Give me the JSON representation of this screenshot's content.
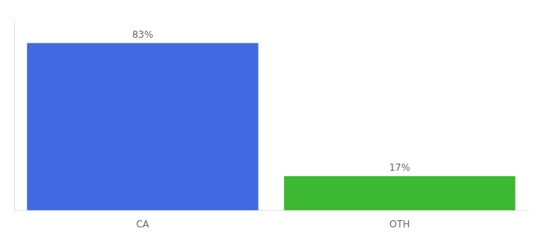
{
  "chart_data": {
    "type": "bar",
    "categories": [
      "CA",
      "OTH"
    ],
    "values": [
      83,
      17
    ],
    "value_labels": [
      "83%",
      "17%"
    ],
    "colors": [
      "#4169e1",
      "#3cb832"
    ],
    "ylim": [
      0,
      95
    ],
    "data_labels": true,
    "tick_labels": "x",
    "grid": false
  }
}
